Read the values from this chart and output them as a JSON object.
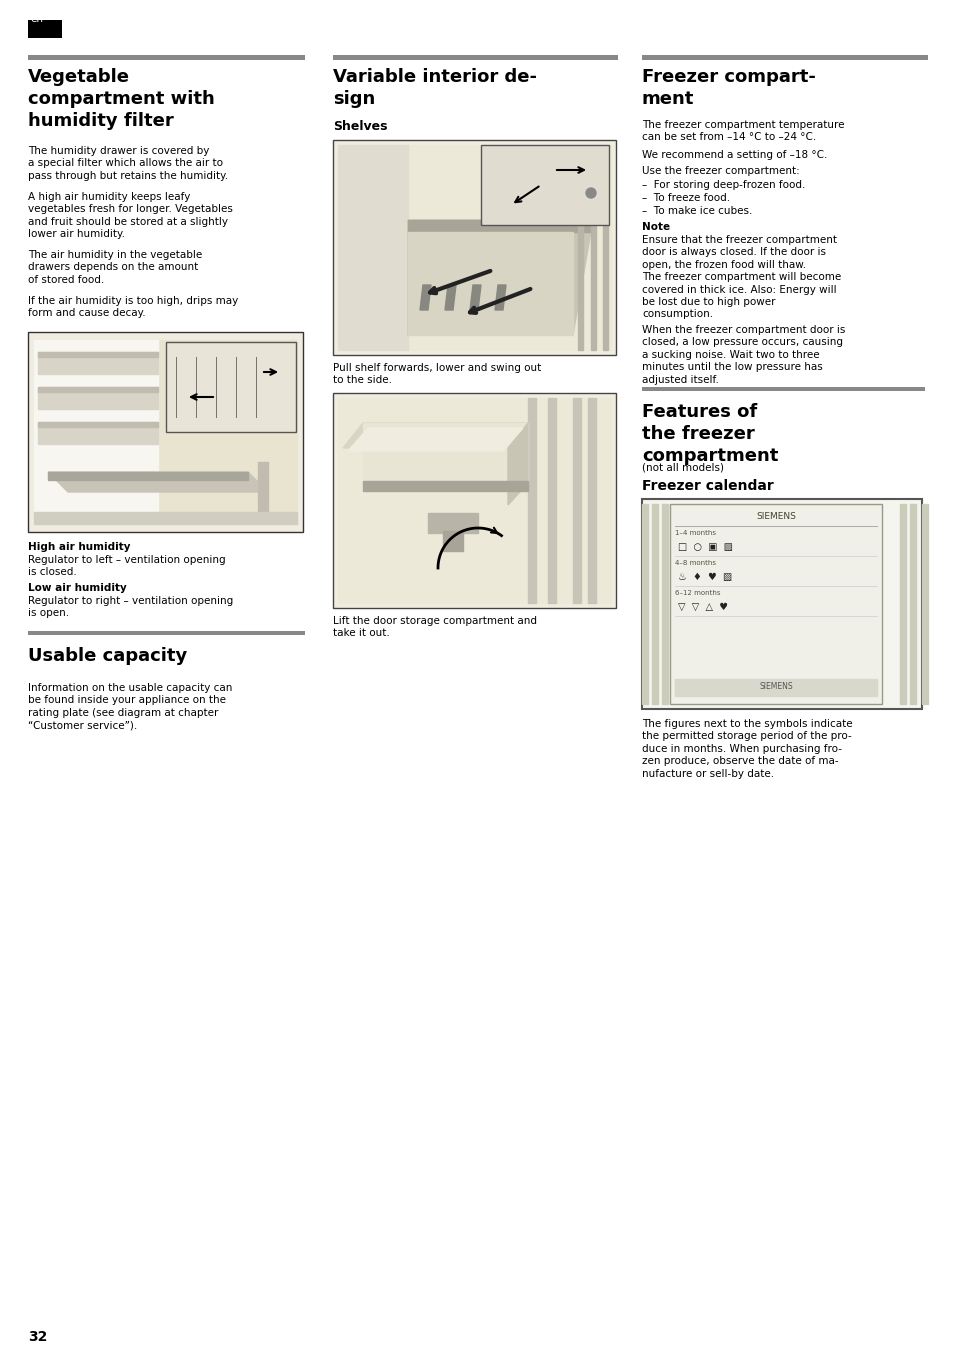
{
  "page_bg": "#ffffff",
  "page_number": "32",
  "body_fs": 7.5,
  "title_fs": 13.0,
  "sub_title_fs": 9.0,
  "sections": {
    "col1_title": "Vegetable\ncompartment with\nhumidity filter",
    "col1_body1": "The humidity drawer is covered by\na special filter which allows the air to\npass through but retains the humidity.",
    "col1_body2": "A high air humidity keeps leafy\nvegetables fresh for longer. Vegetables\nand fruit should be stored at a slightly\nlower air humidity.",
    "col1_body3": "The air humidity in the vegetable\ndrawers depends on the amount\nof stored food.",
    "col1_body4": "If the air humidity is too high, drips may\nform and cause decay.",
    "col1_caption_bold1": "High air humidity",
    "col1_caption1": "Regulator to left – ventilation opening\nis closed.",
    "col1_caption_bold2": "Low air humidity",
    "col1_caption2": "Regulator to right – ventilation opening\nis open.",
    "col1_sub_title": "Usable capacity",
    "col1_sub_body": "Information on the usable capacity can\nbe found inside your appliance on the\nrating plate (see diagram at chapter\n“Customer service”).",
    "col2_title": "Variable interior de-\nsign",
    "col2_sub_title": "Shelves",
    "col2_caption1": "Pull shelf forwards, lower and swing out\nto the side.",
    "col2_caption2": "Lift the door storage compartment and\ntake it out.",
    "col3_title": "Freezer compart-\nment",
    "col3_body1": "The freezer compartment temperature\ncan be set from –14 °C to –24 °C.",
    "col3_body2": "We recommend a setting of –18 °C.",
    "col3_body3": "Use the freezer compartment:",
    "col3_list": [
      "–  For storing deep-frozen food.",
      "–  To freeze food.",
      "–  To make ice cubes."
    ],
    "col3_note_title": "Note",
    "col3_note_body": "Ensure that the freezer compartment\ndoor is always closed. If the door is\nopen, the frozen food will thaw.\nThe freezer compartment will become\ncovered in thick ice. Also: Energy will\nbe lost due to high power\nconsumption.",
    "col3_body4": "When the freezer compartment door is\nclosed, a low pressure occurs, causing\na sucking noise. Wait two to three\nminutes until the low pressure has\nadjusted itself.",
    "col3_sub_title": "Features of\nthe freezer\ncompartment",
    "col3_sub_note": "(not all models)",
    "col3_sub2_title": "Freezer calendar",
    "col3_sub_body": "The figures next to the symbols indicate\nthe permitted storage period of the pro-\nduce in months. When purchasing fro-\nzen produce, observe the date of ma-\nnufacture or sell-by date."
  }
}
